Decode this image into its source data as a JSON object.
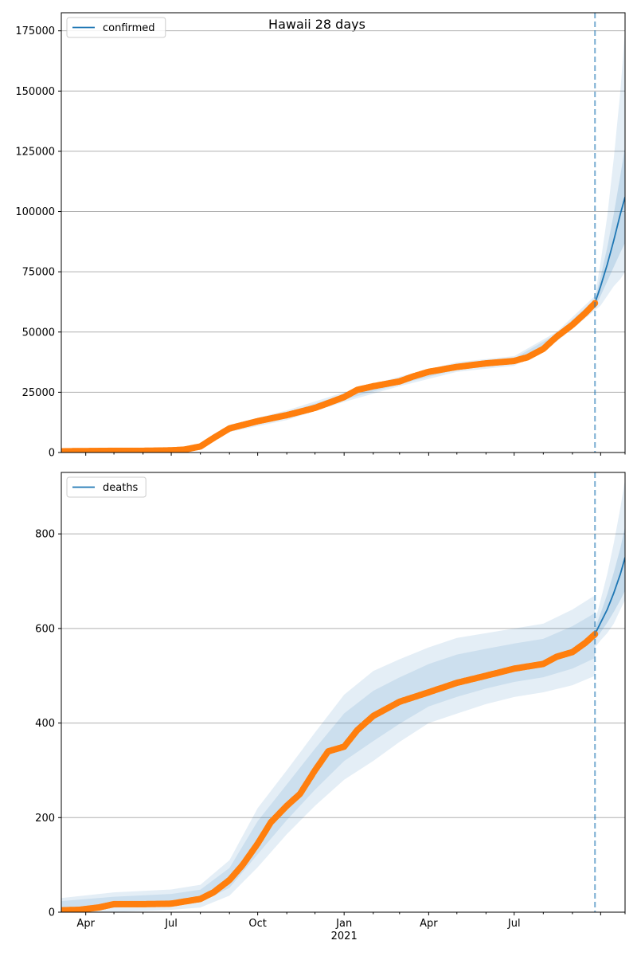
{
  "figure": {
    "title": "Hawaii 28 days"
  },
  "chart_data": [
    {
      "type": "line",
      "name": "confirmed",
      "legend_label": "confirmed",
      "legend_position": "top-left",
      "grid": "horizontal",
      "ylim": [
        0,
        182500
      ],
      "yticks": [
        0,
        25000,
        50000,
        75000,
        100000,
        125000,
        150000,
        175000
      ],
      "xlim": [
        "2020-03-06",
        "2021-10-27"
      ],
      "forecast_start": "2021-09-25",
      "observed": {
        "x": [
          "2020-03-06",
          "2020-04-01",
          "2020-05-01",
          "2020-06-01",
          "2020-07-01",
          "2020-07-15",
          "2020-08-01",
          "2020-08-15",
          "2020-09-01",
          "2020-10-01",
          "2020-11-01",
          "2020-12-01",
          "2020-12-15",
          "2021-01-01",
          "2021-01-15",
          "2021-02-01",
          "2021-03-01",
          "2021-03-15",
          "2021-04-01",
          "2021-05-01",
          "2021-06-01",
          "2021-07-01",
          "2021-07-15",
          "2021-08-01",
          "2021-08-15",
          "2021-09-01",
          "2021-09-15",
          "2021-09-25"
        ],
        "y": [
          500,
          600,
          700,
          700,
          900,
          1200,
          2500,
          6000,
          10000,
          13000,
          15500,
          18500,
          20500,
          23000,
          26000,
          27500,
          29500,
          31500,
          33500,
          35500,
          37000,
          38000,
          39500,
          43000,
          48000,
          53000,
          58000,
          62000
        ]
      },
      "forecast": {
        "x": [
          "2021-09-25",
          "2021-10-01",
          "2021-10-08",
          "2021-10-15",
          "2021-10-22",
          "2021-10-27"
        ],
        "median": [
          62000,
          69000,
          78000,
          88000,
          99000,
          106000
        ],
        "inner_low": [
          60500,
          65000,
          71000,
          77000,
          83000,
          87000
        ],
        "inner_high": [
          63500,
          73000,
          85000,
          99000,
          115000,
          127000
        ],
        "outer_low": [
          59000,
          61000,
          65000,
          69000,
          72000,
          75000
        ],
        "outer_high": [
          65000,
          79000,
          98000,
          122000,
          150000,
          175000
        ]
      },
      "observed_band": {
        "x": [
          "2020-03-06",
          "2020-07-01",
          "2020-08-01",
          "2020-09-01",
          "2020-11-01",
          "2021-01-01",
          "2021-03-01",
          "2021-05-01",
          "2021-07-01",
          "2021-08-15",
          "2021-09-25"
        ],
        "low": [
          0,
          0,
          1500,
          8500,
          13500,
          21000,
          27500,
          33500,
          36000,
          46000,
          59000
        ],
        "high": [
          1500,
          1800,
          3500,
          11500,
          17500,
          25000,
          31500,
          37500,
          40000,
          50000,
          65000
        ]
      },
      "colors": {
        "line": "#1f77b4",
        "markers": "#ff7f0e",
        "band": "#1f77b4",
        "vline": "#1f77b4"
      }
    },
    {
      "type": "line",
      "name": "deaths",
      "legend_label": "deaths",
      "legend_position": "top-left",
      "grid": "horizontal",
      "ylim": [
        0,
        930
      ],
      "yticks": [
        0,
        200,
        400,
        600,
        800
      ],
      "xlim": [
        "2020-03-06",
        "2021-10-27"
      ],
      "xtick_labels": [
        "Apr",
        "Jul",
        "Oct",
        "Jan",
        "Apr",
        "Jul"
      ],
      "xtick_dates": [
        "2020-04-01",
        "2020-07-01",
        "2020-10-01",
        "2021-01-01",
        "2021-04-01",
        "2021-07-01"
      ],
      "xtick_year_label": "2021",
      "forecast_start": "2021-09-25",
      "observed": {
        "x": [
          "2020-03-06",
          "2020-03-25",
          "2020-04-15",
          "2020-05-01",
          "2020-06-01",
          "2020-07-01",
          "2020-08-01",
          "2020-08-15",
          "2020-09-01",
          "2020-09-15",
          "2020-10-01",
          "2020-10-15",
          "2020-11-01",
          "2020-11-15",
          "2020-12-01",
          "2020-12-15",
          "2021-01-01",
          "2021-01-15",
          "2021-02-01",
          "2021-03-01",
          "2021-04-01",
          "2021-05-01",
          "2021-06-01",
          "2021-07-01",
          "2021-08-01",
          "2021-08-15",
          "2021-09-01",
          "2021-09-15",
          "2021-09-25"
        ],
        "y": [
          4,
          5,
          10,
          17,
          17,
          18,
          28,
          42,
          68,
          100,
          145,
          190,
          225,
          250,
          300,
          340,
          350,
          385,
          415,
          445,
          465,
          485,
          500,
          515,
          525,
          540,
          550,
          570,
          588
        ]
      },
      "forecast": {
        "x": [
          "2021-09-25",
          "2021-10-01",
          "2021-10-08",
          "2021-10-15",
          "2021-10-22",
          "2021-10-27"
        ],
        "median": [
          588,
          612,
          640,
          675,
          715,
          750
        ],
        "inner_low": [
          575,
          592,
          612,
          635,
          660,
          680
        ],
        "inner_high": [
          600,
          632,
          672,
          718,
          770,
          815
        ],
        "outer_low": [
          560,
          575,
          590,
          610,
          640,
          660
        ],
        "outer_high": [
          615,
          660,
          715,
          780,
          855,
          915
        ]
      },
      "observed_band": {
        "x": [
          "2020-03-06",
          "2020-05-01",
          "2020-07-01",
          "2020-08-01",
          "2020-09-01",
          "2020-10-01",
          "2020-11-01",
          "2020-12-01",
          "2021-01-01",
          "2021-02-01",
          "2021-03-01",
          "2021-04-01",
          "2021-05-01",
          "2021-06-01",
          "2021-07-01",
          "2021-08-01",
          "2021-09-01",
          "2021-09-25"
        ],
        "low": [
          0,
          0,
          5,
          10,
          35,
          95,
          165,
          225,
          280,
          320,
          360,
          400,
          420,
          440,
          455,
          465,
          480,
          500
        ],
        "high": [
          30,
          42,
          48,
          58,
          110,
          220,
          300,
          380,
          460,
          510,
          535,
          560,
          580,
          590,
          600,
          610,
          640,
          670
        ]
      },
      "colors": {
        "line": "#1f77b4",
        "markers": "#ff7f0e",
        "band": "#1f77b4",
        "vline": "#1f77b4"
      }
    }
  ]
}
